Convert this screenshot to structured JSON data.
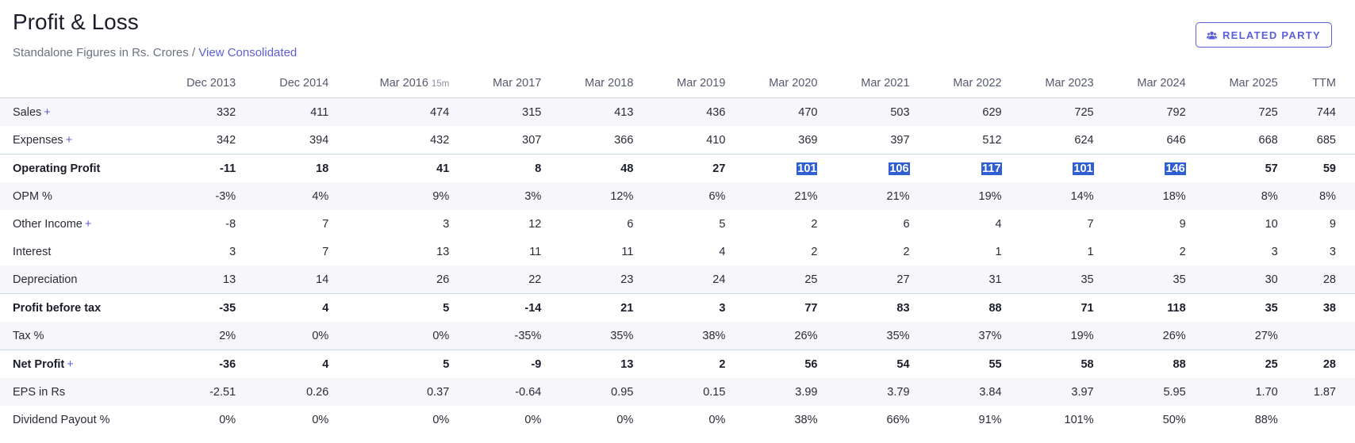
{
  "header": {
    "title": "Profit & Loss",
    "subtitle_prefix": "Standalone Figures in Rs. Crores / ",
    "subtitle_link": "View Consolidated"
  },
  "related_party_button": {
    "label": "RELATED PARTY",
    "icon": "users-icon"
  },
  "columns": [
    "Dec 2013",
    "Dec 2014",
    "Mar 2016",
    "Mar 2017",
    "Mar 2018",
    "Mar 2019",
    "Mar 2020",
    "Mar 2021",
    "Mar 2022",
    "Mar 2023",
    "Mar 2024",
    "Mar 2025",
    "TTM"
  ],
  "column_notes": {
    "Mar 2016": "15m"
  },
  "rows": [
    {
      "label": "Sales",
      "expandable": true,
      "values": [
        "332",
        "411",
        "474",
        "315",
        "413",
        "436",
        "470",
        "503",
        "629",
        "725",
        "792",
        "725",
        "744"
      ]
    },
    {
      "label": "Expenses",
      "expandable": true,
      "values": [
        "342",
        "394",
        "432",
        "307",
        "366",
        "410",
        "369",
        "397",
        "512",
        "624",
        "646",
        "668",
        "685"
      ]
    },
    {
      "label": "Operating Profit",
      "bold": true,
      "values": [
        "-11",
        "18",
        "41",
        "8",
        "48",
        "27",
        "101",
        "106",
        "117",
        "101",
        "146",
        "57",
        "59"
      ],
      "highlighted_columns": [
        6,
        7,
        8,
        9,
        10
      ]
    },
    {
      "label": "OPM %",
      "values": [
        "-3%",
        "4%",
        "9%",
        "3%",
        "12%",
        "6%",
        "21%",
        "21%",
        "19%",
        "14%",
        "18%",
        "8%",
        "8%"
      ]
    },
    {
      "label": "Other Income",
      "expandable": true,
      "values": [
        "-8",
        "7",
        "3",
        "12",
        "6",
        "5",
        "2",
        "6",
        "4",
        "7",
        "9",
        "10",
        "9"
      ]
    },
    {
      "label": "Interest",
      "values": [
        "3",
        "7",
        "13",
        "11",
        "11",
        "4",
        "2",
        "2",
        "1",
        "1",
        "2",
        "3",
        "3"
      ]
    },
    {
      "label": "Depreciation",
      "values": [
        "13",
        "14",
        "26",
        "22",
        "23",
        "24",
        "25",
        "27",
        "31",
        "35",
        "35",
        "30",
        "28"
      ]
    },
    {
      "label": "Profit before tax",
      "bold": true,
      "values": [
        "-35",
        "4",
        "5",
        "-14",
        "21",
        "3",
        "77",
        "83",
        "88",
        "71",
        "118",
        "35",
        "38"
      ]
    },
    {
      "label": "Tax %",
      "values": [
        "2%",
        "0%",
        "0%",
        "-35%",
        "35%",
        "38%",
        "26%",
        "35%",
        "37%",
        "19%",
        "26%",
        "27%",
        ""
      ]
    },
    {
      "label": "Net Profit",
      "bold": true,
      "expandable": true,
      "values": [
        "-36",
        "4",
        "5",
        "-9",
        "13",
        "2",
        "56",
        "54",
        "55",
        "58",
        "88",
        "25",
        "28"
      ]
    },
    {
      "label": "EPS in Rs",
      "values": [
        "-2.51",
        "0.26",
        "0.37",
        "-0.64",
        "0.95",
        "0.15",
        "3.99",
        "3.79",
        "3.84",
        "3.97",
        "5.95",
        "1.70",
        "1.87"
      ]
    },
    {
      "label": "Dividend Payout %",
      "values": [
        "0%",
        "0%",
        "0%",
        "0%",
        "0%",
        "0%",
        "38%",
        "66%",
        "91%",
        "101%",
        "50%",
        "88%",
        ""
      ]
    }
  ]
}
